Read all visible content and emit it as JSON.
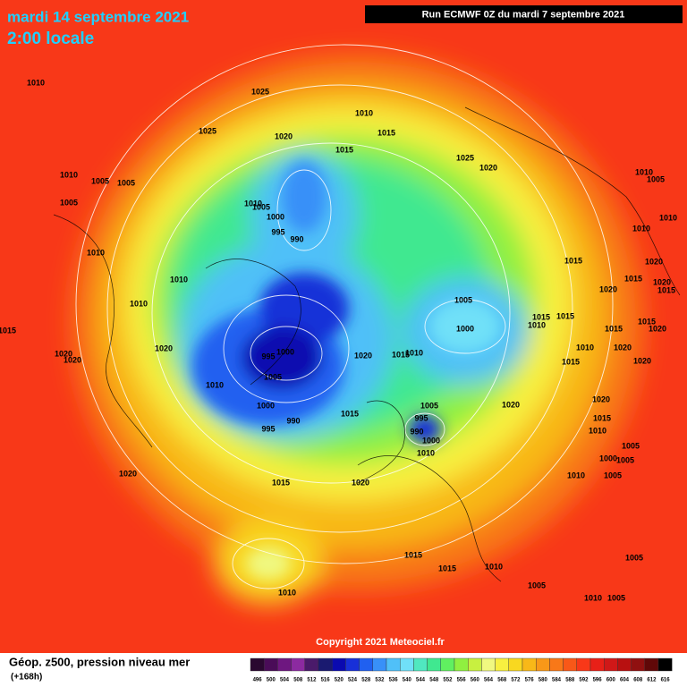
{
  "header": {
    "date": "mardi 14 septembre 2021",
    "local_time": "2:00 locale",
    "run": "Run ECMWF 0Z du mardi 7 septembre 2021"
  },
  "copyright": "Copyright 2021 Meteociel.fr",
  "legend": {
    "title": "Géop. z500, pression niveau mer",
    "lead_time": "(+168h)"
  },
  "scale": {
    "ticks": [
      496,
      500,
      504,
      508,
      512,
      516,
      520,
      524,
      528,
      532,
      536,
      540,
      544,
      548,
      552,
      556,
      560,
      564,
      568,
      572,
      576,
      580,
      584,
      588,
      592,
      596,
      600,
      604,
      608,
      612,
      616
    ],
    "colors": [
      "#2a0830",
      "#4a0c58",
      "#6e1780",
      "#8c2aa0",
      "#4a1a6a",
      "#1a1a70",
      "#0a0ab0",
      "#1830d8",
      "#2060f0",
      "#3890f8",
      "#50c0f8",
      "#70e0f8",
      "#50e8c0",
      "#40e890",
      "#60f060",
      "#90f040",
      "#c8f040",
      "#f0f880",
      "#f8f040",
      "#f8d820",
      "#f8b818",
      "#f89818",
      "#f87818",
      "#f85818",
      "#f83818",
      "#e82018",
      "#d01818",
      "#b81010",
      "#901010",
      "#600808",
      "#000000"
    ]
  },
  "isobar_labels": [
    "1010",
    "1025",
    "1010",
    "1025",
    "1015",
    "1020",
    "1015",
    "1025",
    "1020",
    "1010",
    "1005",
    "1005",
    "1005",
    "1010",
    "1005",
    "1000",
    "995",
    "990",
    "1010",
    "1005",
    "1010",
    "1010",
    "1010",
    "1010",
    "1015",
    "1020",
    "1020",
    "1015",
    "1020",
    "1015",
    "1010",
    "1005",
    "1000",
    "1015",
    "1015",
    "1010",
    "1015",
    "1020",
    "1015",
    "1015",
    "1020",
    "995",
    "1000",
    "1020",
    "1020",
    "1020",
    "1015",
    "1010",
    "1010",
    "1020",
    "1015",
    "1020",
    "1010",
    "1005",
    "1000",
    "1005",
    "990",
    "995",
    "1015",
    "995",
    "990",
    "1000",
    "1020",
    "1020",
    "1015",
    "1010",
    "1005",
    "1000",
    "1005",
    "1010",
    "1020",
    "1015",
    "1020",
    "1010",
    "1005",
    "1015",
    "1015",
    "1010",
    "1005",
    "1005",
    "1010",
    "1005",
    "1010"
  ]
}
